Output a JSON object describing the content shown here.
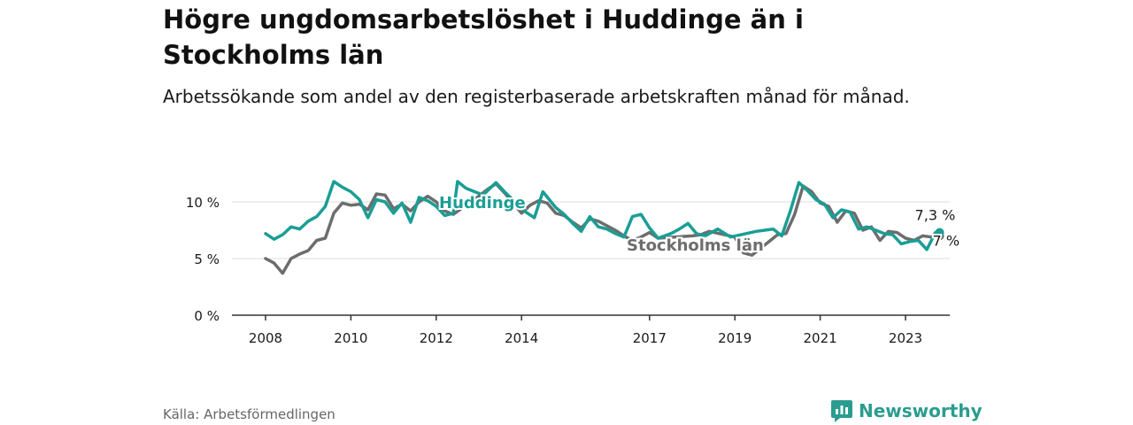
{
  "title": "Högre ungdomsarbetslöshet i Huddinge än i Stockholms län",
  "subtitle": "Arbetssökande som andel av den registerbaserade arbetskraften månad för månad.",
  "source": "Källa: Arbetsförmedlingen",
  "brand": "Newsworthy",
  "colors": {
    "huddinge": "#1a9e95",
    "stockholm": "#6d6d6d",
    "grid": "#dddddd",
    "axis": "#333333",
    "brand": "#2a9d8f"
  },
  "chart_data": {
    "type": "line",
    "title": "Högre ungdomsarbetslöshet i Huddinge än i Stockholms län",
    "xlabel": "",
    "ylabel": "",
    "xlim": [
      2008,
      2024.7
    ],
    "ylim": [
      0,
      12.5
    ],
    "x_ticks": [
      {
        "value": 2008,
        "label": "2008"
      },
      {
        "value": 2010,
        "label": "2010"
      },
      {
        "value": 2012,
        "label": "2012"
      },
      {
        "value": 2014,
        "label": "2014"
      },
      {
        "value": 2017,
        "label": "2017"
      },
      {
        "value": 2019,
        "label": "2019"
      },
      {
        "value": 2021,
        "label": "2021"
      },
      {
        "value": 2023,
        "label": "2023"
      }
    ],
    "y_ticks": [
      {
        "value": 0,
        "label": "0 %"
      },
      {
        "value": 5,
        "label": "5 %"
      },
      {
        "value": 10,
        "label": "10 %"
      }
    ],
    "series": [
      {
        "name": "Stockholms län",
        "label": "Stockholms län",
        "end_label": "7 %",
        "points": [
          [
            2008.0,
            5.0
          ],
          [
            2008.2,
            4.6
          ],
          [
            2008.4,
            3.7
          ],
          [
            2008.6,
            5.0
          ],
          [
            2008.8,
            5.4
          ],
          [
            2009.0,
            5.7
          ],
          [
            2009.2,
            6.6
          ],
          [
            2009.4,
            6.8
          ],
          [
            2009.6,
            9.0
          ],
          [
            2009.8,
            9.9
          ],
          [
            2010.0,
            9.7
          ],
          [
            2010.2,
            9.8
          ],
          [
            2010.4,
            9.3
          ],
          [
            2010.6,
            10.7
          ],
          [
            2010.8,
            10.6
          ],
          [
            2011.0,
            9.4
          ],
          [
            2011.2,
            9.8
          ],
          [
            2011.4,
            9.2
          ],
          [
            2011.6,
            10.0
          ],
          [
            2011.8,
            10.5
          ],
          [
            2012.0,
            10.0
          ],
          [
            2012.2,
            9.2
          ],
          [
            2012.4,
            8.9
          ],
          [
            2013.0,
            10.5
          ],
          [
            2013.2,
            11.1
          ],
          [
            2013.4,
            11.6
          ],
          [
            2013.6,
            10.8
          ],
          [
            2014.0,
            9.0
          ],
          [
            2014.2,
            9.7
          ],
          [
            2014.4,
            10.1
          ],
          [
            2014.6,
            9.9
          ],
          [
            2014.8,
            9.0
          ],
          [
            2015.0,
            8.8
          ],
          [
            2015.2,
            8.2
          ],
          [
            2015.4,
            7.7
          ],
          [
            2015.6,
            8.5
          ],
          [
            2015.8,
            8.3
          ],
          [
            2016.0,
            7.9
          ],
          [
            2016.2,
            7.5
          ],
          [
            2016.4,
            7.0
          ],
          [
            2016.6,
            6.6
          ],
          [
            2016.8,
            6.9
          ],
          [
            2017.0,
            7.3
          ],
          [
            2017.2,
            6.8
          ],
          [
            2018.0,
            7.0
          ],
          [
            2018.2,
            7.1
          ],
          [
            2018.4,
            7.4
          ],
          [
            2019.0,
            6.9
          ],
          [
            2019.2,
            5.5
          ],
          [
            2019.4,
            5.3
          ],
          [
            2020.0,
            7.1
          ],
          [
            2020.2,
            7.2
          ],
          [
            2020.4,
            8.9
          ],
          [
            2020.6,
            11.4
          ],
          [
            2020.8,
            10.9
          ],
          [
            2021.0,
            9.9
          ],
          [
            2021.2,
            9.6
          ],
          [
            2021.4,
            8.2
          ],
          [
            2021.6,
            9.2
          ],
          [
            2021.8,
            9.0
          ],
          [
            2022.0,
            7.5
          ],
          [
            2022.2,
            7.8
          ],
          [
            2022.4,
            6.6
          ],
          [
            2022.6,
            7.4
          ],
          [
            2022.8,
            7.3
          ],
          [
            2023.0,
            6.8
          ],
          [
            2023.2,
            6.6
          ],
          [
            2023.4,
            7.0
          ],
          [
            2023.6,
            6.9
          ],
          [
            2023.8,
            7.0
          ]
        ]
      },
      {
        "name": "Huddinge",
        "label": "Huddinge",
        "end_label": "7,3 %",
        "points": [
          [
            2008.0,
            7.2
          ],
          [
            2008.2,
            6.7
          ],
          [
            2008.4,
            7.1
          ],
          [
            2008.6,
            7.8
          ],
          [
            2008.8,
            7.6
          ],
          [
            2009.0,
            8.3
          ],
          [
            2009.2,
            8.7
          ],
          [
            2009.4,
            9.6
          ],
          [
            2009.6,
            11.8
          ],
          [
            2009.8,
            11.3
          ],
          [
            2010.0,
            10.9
          ],
          [
            2010.2,
            10.2
          ],
          [
            2010.4,
            8.6
          ],
          [
            2010.6,
            10.2
          ],
          [
            2010.8,
            10.0
          ],
          [
            2011.0,
            9.0
          ],
          [
            2011.2,
            9.9
          ],
          [
            2011.4,
            8.2
          ],
          [
            2011.6,
            10.4
          ],
          [
            2011.8,
            10.1
          ],
          [
            2012.0,
            9.6
          ],
          [
            2012.2,
            8.8
          ],
          [
            2012.4,
            9.0
          ],
          [
            2012.5,
            11.8
          ],
          [
            2012.7,
            11.2
          ],
          [
            2012.9,
            10.9
          ],
          [
            2013.1,
            10.6
          ],
          [
            2013.4,
            11.7
          ],
          [
            2013.6,
            10.9
          ],
          [
            2013.9,
            9.8
          ],
          [
            2014.1,
            9.1
          ],
          [
            2014.3,
            8.6
          ],
          [
            2014.5,
            10.9
          ],
          [
            2014.8,
            9.5
          ],
          [
            2015.0,
            8.9
          ],
          [
            2015.2,
            8.1
          ],
          [
            2015.4,
            7.4
          ],
          [
            2015.6,
            8.7
          ],
          [
            2015.8,
            7.8
          ],
          [
            2016.0,
            7.6
          ],
          [
            2016.2,
            7.2
          ],
          [
            2016.4,
            6.9
          ],
          [
            2016.6,
            8.7
          ],
          [
            2016.8,
            8.9
          ],
          [
            2017.0,
            7.7
          ],
          [
            2017.2,
            6.8
          ],
          [
            2017.5,
            7.2
          ],
          [
            2017.7,
            7.6
          ],
          [
            2017.9,
            8.1
          ],
          [
            2018.1,
            7.2
          ],
          [
            2018.3,
            7.0
          ],
          [
            2018.6,
            7.6
          ],
          [
            2018.9,
            6.9
          ],
          [
            2019.5,
            7.4
          ],
          [
            2019.7,
            7.5
          ],
          [
            2019.9,
            7.6
          ],
          [
            2020.1,
            7.0
          ],
          [
            2020.3,
            9.2
          ],
          [
            2020.5,
            11.7
          ],
          [
            2020.7,
            11.0
          ],
          [
            2020.9,
            10.2
          ],
          [
            2021.1,
            9.8
          ],
          [
            2021.3,
            8.6
          ],
          [
            2021.5,
            9.3
          ],
          [
            2021.7,
            9.1
          ],
          [
            2021.9,
            7.6
          ],
          [
            2022.1,
            7.8
          ],
          [
            2022.3,
            7.5
          ],
          [
            2022.5,
            7.2
          ],
          [
            2022.7,
            7.1
          ],
          [
            2022.9,
            6.3
          ],
          [
            2023.1,
            6.5
          ],
          [
            2023.3,
            6.6
          ],
          [
            2023.5,
            5.8
          ],
          [
            2023.7,
            7.3
          ],
          [
            2023.8,
            7.3
          ]
        ]
      }
    ]
  }
}
